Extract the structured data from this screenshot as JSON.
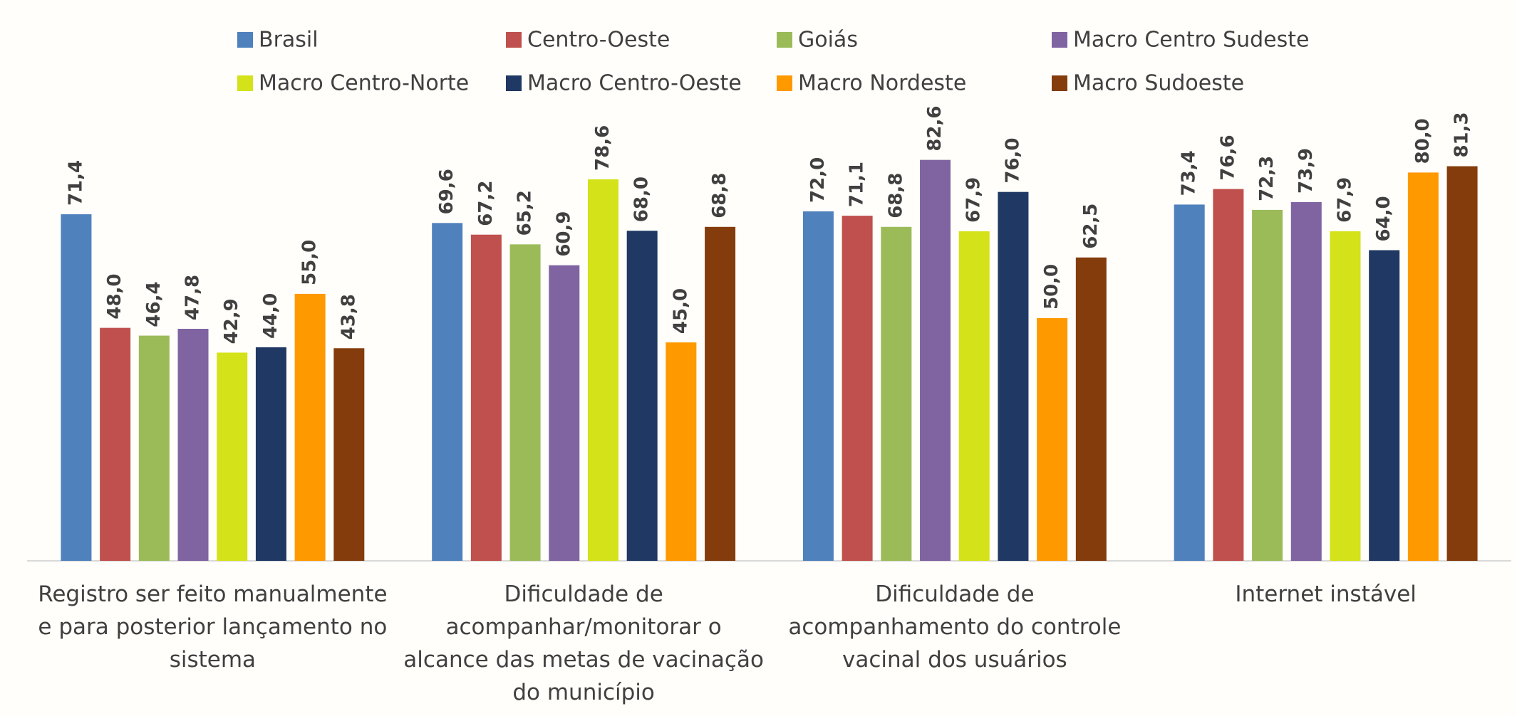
{
  "chart_data": {
    "type": "bar",
    "categories": [
      "Registro ser feito manualmente e para posterior lançamento no sistema",
      "Dificuldade de acompanhar/monitorar o alcance das metas de vacinação do município",
      "Dificuldade de acompanhamento do controle vacinal dos usuários",
      "Internet instável"
    ],
    "series": [
      {
        "name": "Brasil",
        "color": "#4f81bd",
        "values": [
          71.4,
          69.6,
          72.0,
          73.4
        ],
        "value_labels": [
          "71,4",
          "69,6",
          "72,0",
          "73,4"
        ]
      },
      {
        "name": "Centro-Oeste",
        "color": "#c0504d",
        "values": [
          48.0,
          67.2,
          71.1,
          76.6
        ],
        "value_labels": [
          "48,0",
          "67,2",
          "71,1",
          "76,6"
        ]
      },
      {
        "name": "Goiás",
        "color": "#9bbb59",
        "values": [
          46.4,
          65.2,
          68.8,
          72.3
        ],
        "value_labels": [
          "46,4",
          "65,2",
          "68,8",
          "72,3"
        ]
      },
      {
        "name": "Macro Centro Sudeste",
        "color": "#8064a2",
        "values": [
          47.8,
          60.9,
          82.6,
          73.9
        ],
        "value_labels": [
          "47,8",
          "60,9",
          "82,6",
          "73,9"
        ]
      },
      {
        "name": "Macro Centro-Norte",
        "color": "#d4e21a",
        "values": [
          42.9,
          78.6,
          67.9,
          67.9
        ],
        "value_labels": [
          "42,9",
          "78,6",
          "67,9",
          "67,9"
        ]
      },
      {
        "name": "Macro Centro-Oeste",
        "color": "#1f3864",
        "values": [
          44.0,
          68.0,
          76.0,
          64.0
        ],
        "value_labels": [
          "44,0",
          "68,0",
          "76,0",
          "64,0"
        ]
      },
      {
        "name": "Macro Nordeste",
        "color": "#ff9900",
        "values": [
          55.0,
          45.0,
          50.0,
          80.0
        ],
        "value_labels": [
          "55,0",
          "45,0",
          "50,0",
          "80,0"
        ]
      },
      {
        "name": "Macro Sudoeste",
        "color": "#843c0c",
        "values": [
          43.8,
          68.8,
          62.5,
          81.3
        ],
        "value_labels": [
          "43,8",
          "68,8",
          "62,5",
          "81,3"
        ]
      }
    ],
    "ylim": [
      0,
      100
    ]
  }
}
